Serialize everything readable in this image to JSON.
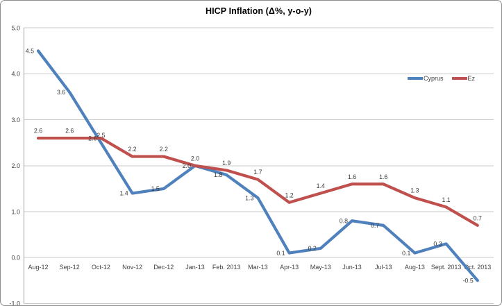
{
  "chart_data": {
    "type": "line",
    "title": "HICP Inflation (Δ%, y-o-y)",
    "categories": [
      "Aug-12",
      "Sep-12",
      "Oct-12",
      "Nov-12",
      "Dec-12",
      "Jan-13",
      "Feb. 2013",
      "Mar-13",
      "Apr-13",
      "May-13",
      "Jun-13",
      "Jul-13",
      "Aug-13",
      "Sept. 2013",
      "Oct. 2013"
    ],
    "series": [
      {
        "name": "Cyprus",
        "color": "#4F81BD",
        "values": [
          4.5,
          3.6,
          2.5,
          1.4,
          1.5,
          2.0,
          1.8,
          1.3,
          0.1,
          0.2,
          0.8,
          0.7,
          0.1,
          0.3,
          -0.5
        ],
        "label_placement": "left",
        "label_overrides": {
          "2": "above"
        }
      },
      {
        "name": "Ez",
        "color": "#C0504D",
        "values": [
          2.6,
          2.6,
          2.6,
          2.2,
          2.2,
          2.0,
          1.9,
          1.7,
          1.2,
          1.4,
          1.6,
          1.6,
          1.3,
          1.1,
          0.7
        ],
        "label_placement": "above",
        "label_overrides": {
          "2": "left"
        }
      }
    ],
    "xlabel": "",
    "ylabel": "",
    "ylim": [
      -1.0,
      5.0
    ],
    "yticks": [
      "5.0",
      "4.0",
      "3.0",
      "2.0",
      "1.0",
      "0.0",
      "-1.0"
    ],
    "grid": true,
    "legend_position": "inside-upper-right",
    "colors": {
      "grid": "#C9C9C9",
      "axis": "#9E9E9E",
      "frame": "#8C8C8C",
      "label_text": "#3A3A3A"
    }
  }
}
